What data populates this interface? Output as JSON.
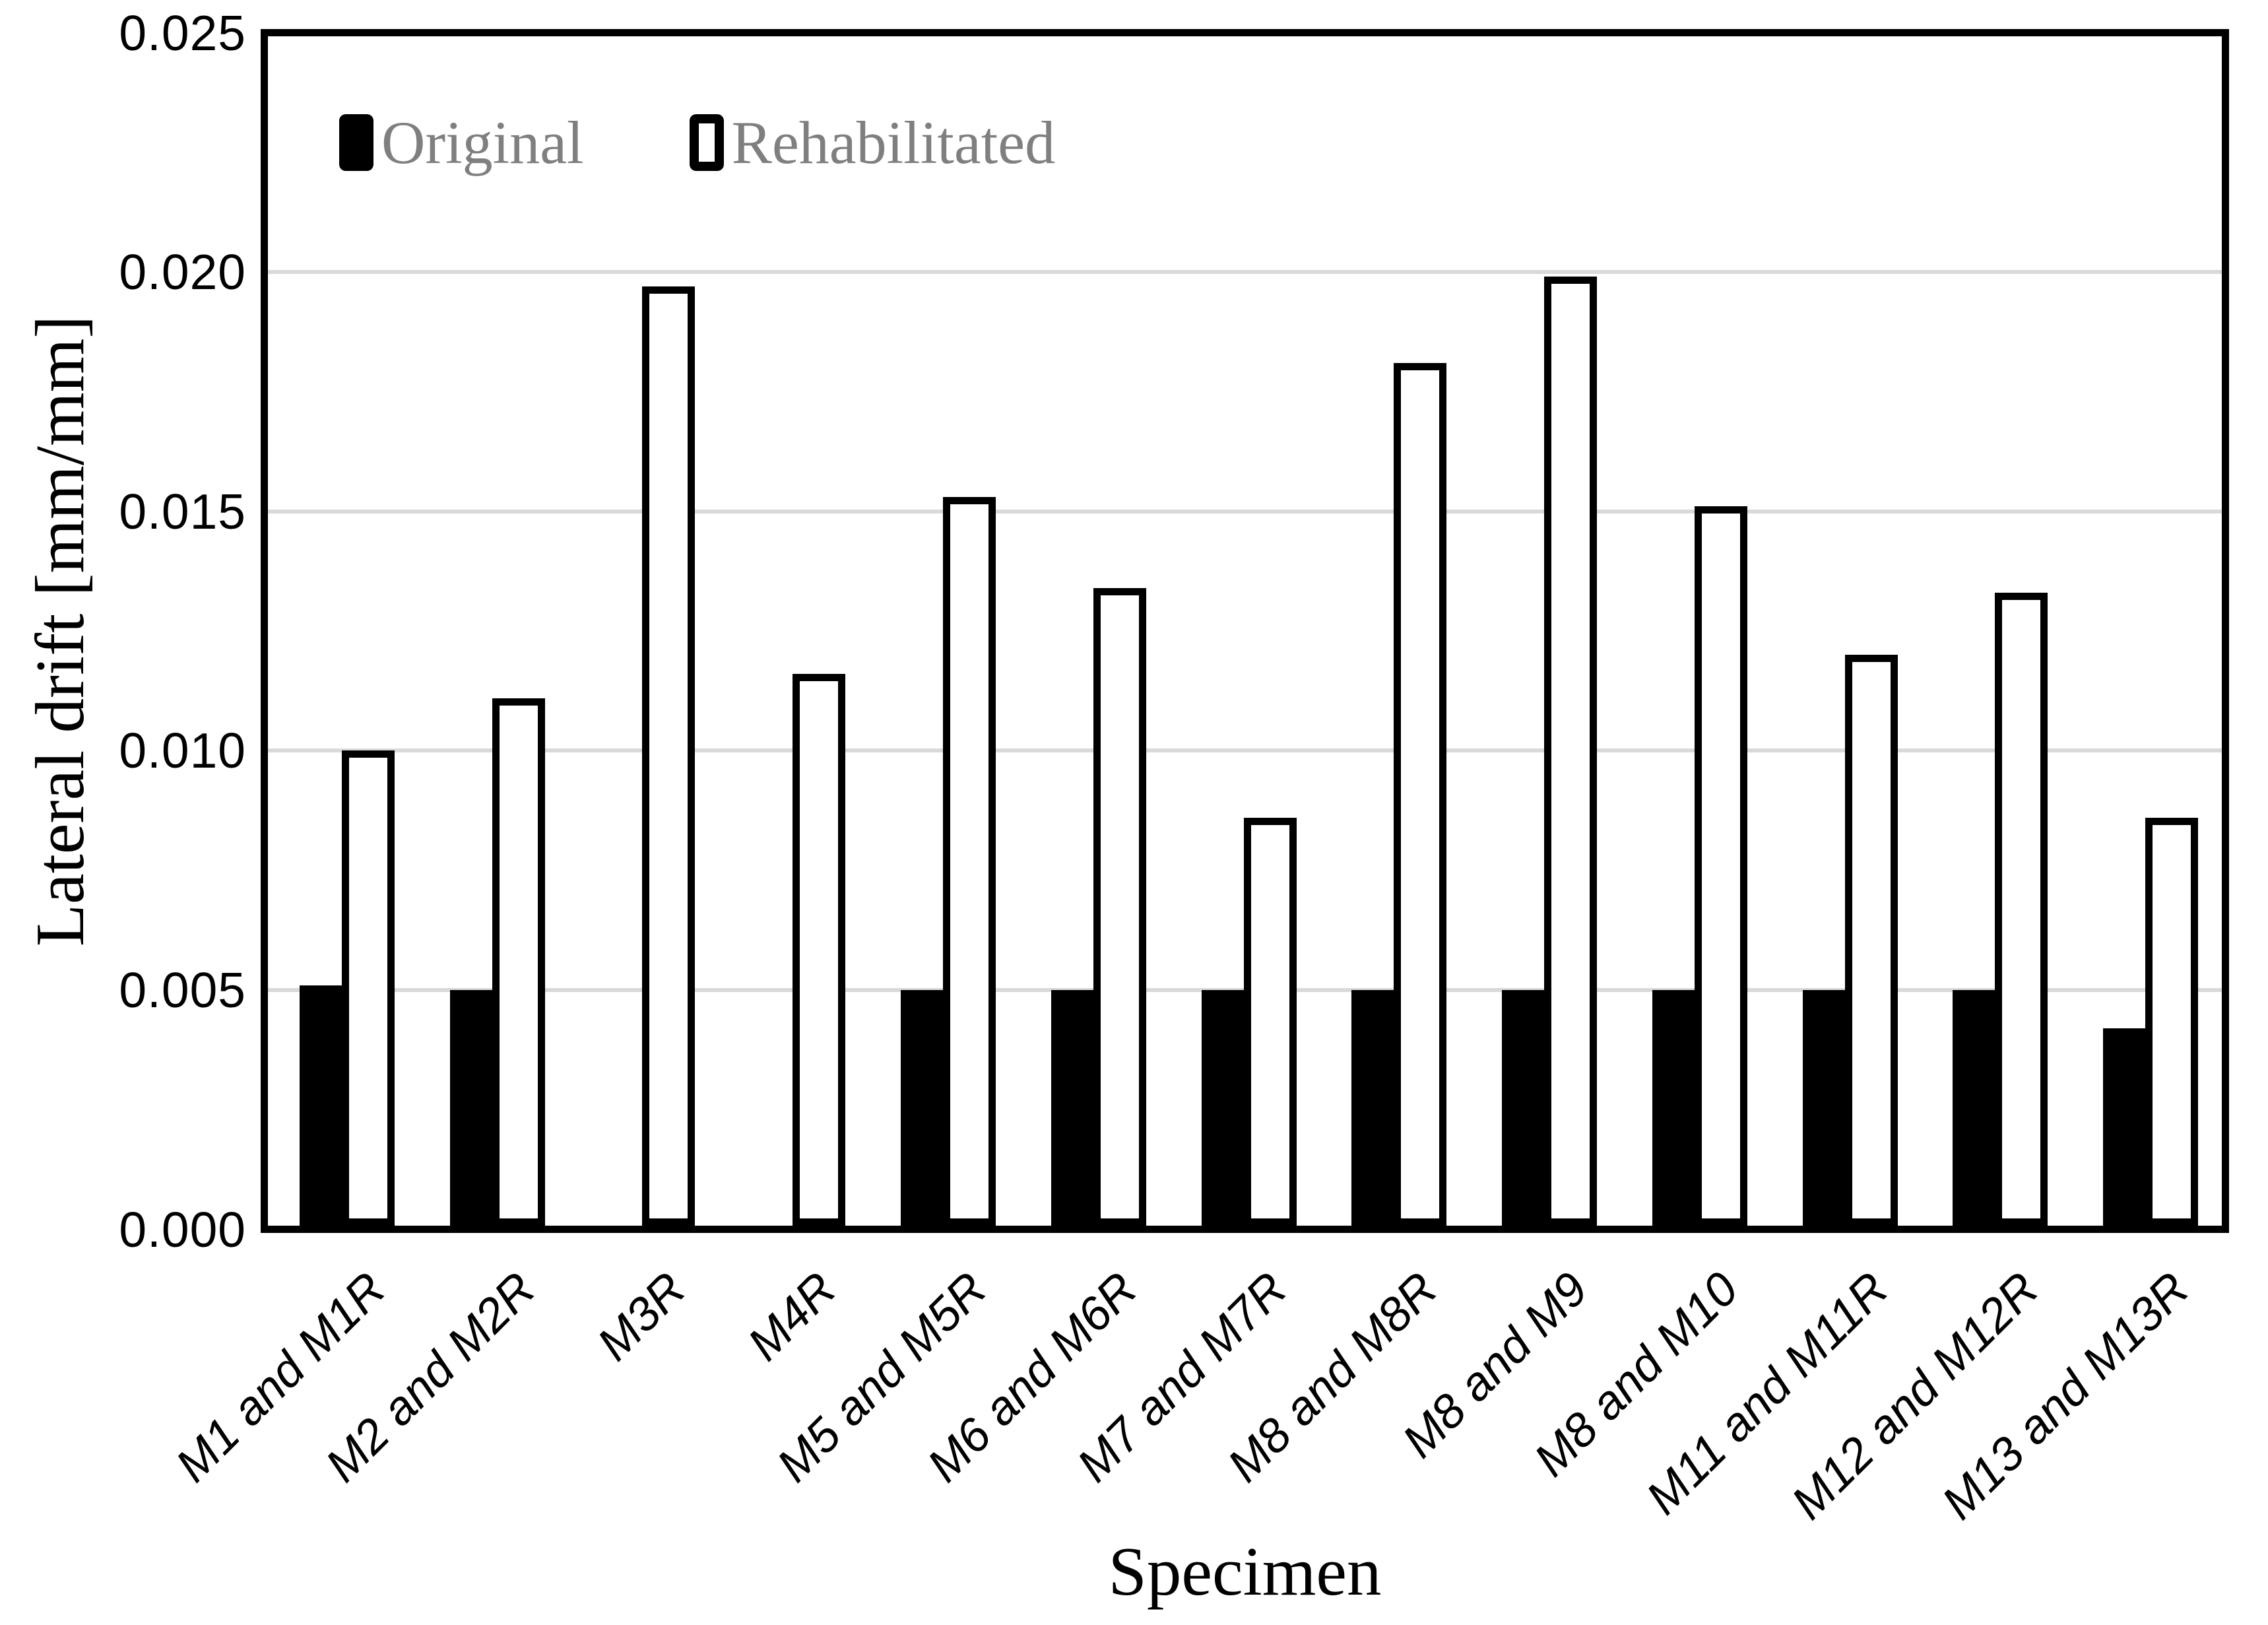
{
  "chart_data": {
    "type": "bar",
    "title": "",
    "xlabel": "Specimen",
    "ylabel": "Lateral drift [mm/mm]",
    "ylim": [
      0,
      0.025
    ],
    "ytick_step": 0.005,
    "yticks": [
      "0.000",
      "0.005",
      "0.010",
      "0.015",
      "0.020",
      "0.025"
    ],
    "grid": "horizontal-light-gray",
    "legend_position": "inside-top-left",
    "categories": [
      "M1 and M1R",
      "M2 and M2R",
      "M3R",
      "M4R",
      "M5 and M5R",
      "M6 and M6R",
      "M7 and M7R",
      "M8 and M8R",
      "M8 and M9",
      "M8 and M10",
      "M11 and M11R",
      "M12 and M12R",
      "M13 and M13R"
    ],
    "series": [
      {
        "name": "Original",
        "style": "solid-black",
        "values": [
          0.0051,
          0.005,
          null,
          null,
          0.005,
          0.005,
          0.005,
          0.005,
          0.005,
          0.005,
          0.005,
          0.005,
          0.0042
        ]
      },
      {
        "name": "Rehabilitated",
        "style": "white-black-outline",
        "values": [
          0.01,
          0.0111,
          0.0197,
          0.0116,
          0.0153,
          0.0134,
          0.0086,
          0.0181,
          0.0199,
          0.0151,
          0.012,
          0.0133,
          0.0086
        ]
      }
    ],
    "colors": {
      "original_fill": "#000000",
      "rehabilitated_fill": "#ffffff",
      "bar_outline": "#000000",
      "gridline": "#d9d9d9",
      "plot_border": "#000000",
      "legend_text": "#7f7f7f",
      "axis_text": "#000000",
      "background": "#ffffff"
    }
  }
}
